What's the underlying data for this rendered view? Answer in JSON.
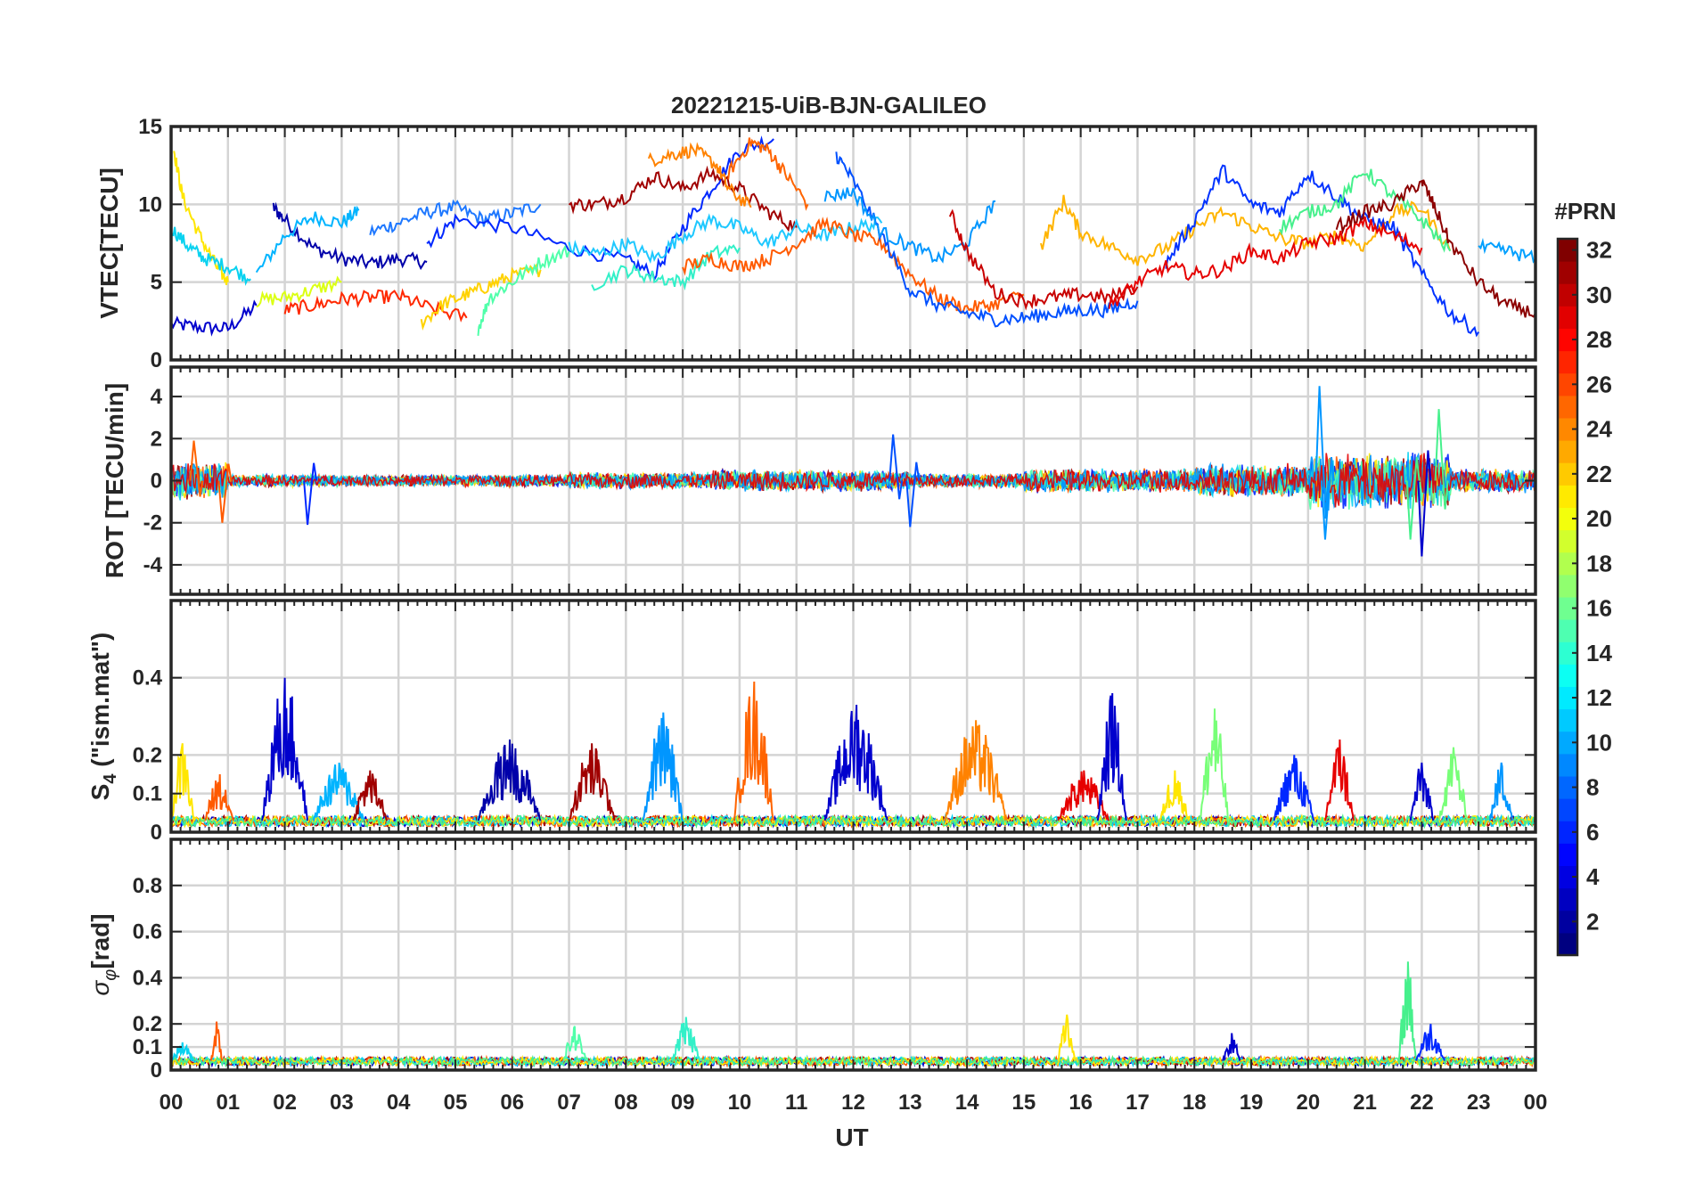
{
  "figure": {
    "title": "20221215-UiB-BJN-GALILEO",
    "xlabel": "UT"
  },
  "colorbar": {
    "label": "#PRN",
    "range": [
      1,
      32
    ],
    "ticks": [
      "2",
      "4",
      "6",
      "8",
      "10",
      "12",
      "14",
      "16",
      "18",
      "20",
      "22",
      "24",
      "26",
      "28",
      "30",
      "32"
    ],
    "colormap": "jet"
  },
  "chart_data": [
    {
      "type": "line",
      "panel": "vtec",
      "ylabel": "VTEC[TECU]",
      "xlim": [
        0,
        24
      ],
      "ylim": [
        0,
        15
      ],
      "ytick_labels": [
        "0",
        "5",
        "10",
        "15"
      ],
      "yticks": [
        0,
        5,
        10,
        15
      ],
      "xtick_labels": [
        "00",
        "01",
        "02",
        "03",
        "04",
        "05",
        "06",
        "07",
        "08",
        "09",
        "10",
        "11",
        "12",
        "13",
        "14",
        "15",
        "16",
        "17",
        "18",
        "19",
        "20",
        "21",
        "22",
        "23",
        "00"
      ],
      "grid": true,
      "series": [
        {
          "prn": 3,
          "color": "#0000cd",
          "x": [
            0.0,
            0.5,
            1.0,
            1.5
          ],
          "y": [
            2.3,
            2.1,
            2.0,
            3.5
          ]
        },
        {
          "prn": 2,
          "color": "#0000aa",
          "x": [
            1.8,
            2.0,
            2.5,
            3.0,
            3.5,
            4.0,
            4.5
          ],
          "y": [
            9.8,
            9.0,
            7.2,
            6.5,
            6.2,
            6.5,
            6.3
          ]
        },
        {
          "prn": 11,
          "color": "#00b4ff",
          "x": [
            1.5,
            2.0,
            2.5,
            3.0,
            3.3
          ],
          "y": [
            5.5,
            8.0,
            9.2,
            8.8,
            9.6
          ]
        },
        {
          "prn": 7,
          "color": "#1e78ff",
          "x": [
            3.5,
            4.0,
            4.5,
            5.0,
            5.5,
            6.0,
            6.5
          ],
          "y": [
            8.2,
            8.8,
            9.5,
            9.8,
            9.0,
            9.4,
            10.0
          ]
        },
        {
          "prn": 4,
          "color": "#0028ff",
          "x": [
            4.5,
            5.0,
            6.0,
            7.0,
            8.0,
            8.5,
            9.0,
            9.5,
            10.0,
            10.6
          ],
          "y": [
            7.5,
            9.0,
            8.5,
            7.2,
            6.4,
            5.5,
            8.5,
            11.0,
            13.5,
            14.2
          ]
        },
        {
          "prn": 20,
          "color": "#ffe600",
          "x": [
            0.05,
            0.2,
            0.5,
            0.8,
            1.0
          ],
          "y": [
            13.5,
            10.5,
            8.0,
            6.0,
            5.0
          ]
        },
        {
          "prn": 12,
          "color": "#0ad2f0",
          "x": [
            0.0,
            0.3,
            0.6,
            1.0,
            1.4
          ],
          "y": [
            8.5,
            7.3,
            6.5,
            6.0,
            5.2
          ]
        },
        {
          "prn": 19,
          "color": "#dcff14",
          "x": [
            1.5,
            2.0,
            2.5,
            3.0
          ],
          "y": [
            3.8,
            4.0,
            4.5,
            5.0
          ]
        },
        {
          "prn": 27,
          "color": "#ff2800",
          "x": [
            2.0,
            2.5,
            3.0,
            3.5,
            4.0,
            4.5,
            5.2
          ],
          "y": [
            3.2,
            3.5,
            3.9,
            4.0,
            4.1,
            3.4,
            2.7
          ]
        },
        {
          "prn": 21,
          "color": "#ffd200",
          "x": [
            4.4,
            4.8,
            5.2,
            5.6,
            6.0,
            6.5
          ],
          "y": [
            2.4,
            3.6,
            4.2,
            4.8,
            5.4,
            5.8
          ]
        },
        {
          "prn": 16,
          "color": "#50ffaa",
          "x": [
            5.4,
            5.6,
            6.0,
            6.5,
            7.0
          ],
          "y": [
            2.0,
            4.0,
            5.0,
            6.3,
            7.0
          ]
        },
        {
          "prn": 31,
          "color": "#a00000",
          "x": [
            7.0,
            7.5,
            8.0,
            8.5,
            9.0,
            9.5,
            10.0,
            10.5,
            11.0
          ],
          "y": [
            10.0,
            10.0,
            10.5,
            11.8,
            11.0,
            12.0,
            11.0,
            9.5,
            8.5
          ]
        },
        {
          "prn": 24,
          "color": "#ff8200",
          "x": [
            8.4,
            8.8,
            9.2,
            9.6,
            9.8,
            10.2
          ],
          "y": [
            12.8,
            13.2,
            13.5,
            12.5,
            11.0,
            9.8
          ]
        },
        {
          "prn": 25,
          "color": "#ff6400",
          "x": [
            9.8,
            10.2,
            10.5,
            10.8,
            11.2
          ],
          "y": [
            12.0,
            14.0,
            13.5,
            12.0,
            10.0
          ]
        },
        {
          "prn": 13,
          "color": "#1ec8ff",
          "x": [
            7.0,
            7.5,
            8.0,
            8.5,
            9.0,
            9.5,
            10.0,
            10.5,
            11.0,
            11.5,
            12.0,
            12.5
          ],
          "y": [
            7.2,
            6.8,
            7.5,
            6.5,
            8.0,
            9.0,
            8.5,
            7.5,
            8.5,
            8.0,
            8.5,
            8.8
          ]
        },
        {
          "prn": 14,
          "color": "#32f0c8",
          "x": [
            7.4,
            8.0,
            8.5,
            9.0,
            9.5,
            10.0
          ],
          "y": [
            4.8,
            5.8,
            5.3,
            5.0,
            6.8,
            7.2
          ]
        },
        {
          "prn": 26,
          "color": "#ff5a00",
          "x": [
            9.0,
            9.5,
            10.0,
            10.5,
            11.0,
            11.5,
            12.0,
            12.5,
            13.0,
            13.5,
            14.0,
            14.5,
            15.0
          ],
          "y": [
            6.0,
            6.5,
            6.0,
            6.5,
            7.5,
            8.8,
            8.0,
            7.5,
            5.5,
            4.0,
            3.3,
            3.6,
            4.2
          ]
        },
        {
          "prn": 5,
          "color": "#0050ff",
          "x": [
            11.7,
            12.0,
            12.5,
            13.0,
            13.5,
            14.0,
            14.5,
            15.0,
            15.5,
            16.0,
            16.5,
            17.0
          ],
          "y": [
            13.2,
            11.5,
            8.0,
            4.5,
            3.5,
            3.0,
            2.6,
            2.7,
            3.0,
            3.2,
            3.2,
            3.8
          ]
        },
        {
          "prn": 9,
          "color": "#0096ff",
          "x": [
            11.5,
            12.0,
            12.5,
            13.0,
            13.5,
            14.0,
            14.5
          ],
          "y": [
            10.5,
            10.8,
            8.2,
            7.3,
            6.5,
            7.5,
            10.2
          ]
        },
        {
          "prn": 29,
          "color": "#c80000",
          "x": [
            13.7,
            14.0,
            14.5,
            15.0,
            15.5,
            16.0,
            16.5,
            17.0
          ],
          "y": [
            9.5,
            7.0,
            4.3,
            3.8,
            4.0,
            4.2,
            4.0,
            4.7
          ]
        },
        {
          "prn": 22,
          "color": "#ffb400",
          "x": [
            15.3,
            15.7,
            16.0,
            16.5,
            17.0,
            17.5,
            18.0,
            18.5,
            19.0,
            19.5,
            20.0,
            20.5,
            21.0,
            21.5,
            22.0,
            22.5
          ],
          "y": [
            7.3,
            10.2,
            8.2,
            7.3,
            6.5,
            7.2,
            8.5,
            9.5,
            8.6,
            7.8,
            7.5,
            8.0,
            7.3,
            9.5,
            9.8,
            7.0
          ]
        },
        {
          "prn": 6,
          "color": "#0032ff",
          "x": [
            17.5,
            18.0,
            18.5,
            19.0,
            19.5,
            20.0,
            20.5,
            21.0,
            21.5,
            22.0,
            22.5,
            23.0
          ],
          "y": [
            6.2,
            9.0,
            12.2,
            10.0,
            9.5,
            12.0,
            10.5,
            9.0,
            8.5,
            5.5,
            3.0,
            1.8
          ]
        },
        {
          "prn": 28,
          "color": "#e60000",
          "x": [
            16.5,
            17.0,
            17.5,
            18.0,
            18.5,
            19.0,
            19.5,
            20.0,
            20.5,
            21.0,
            21.5,
            22.0
          ],
          "y": [
            3.5,
            5.0,
            6.0,
            5.5,
            5.8,
            7.0,
            6.5,
            7.5,
            7.8,
            8.8,
            8.0,
            7.2
          ]
        },
        {
          "prn": 15,
          "color": "#46f08c",
          "x": [
            19.5,
            20.0,
            20.5,
            21.0,
            21.5,
            22.0,
            22.5
          ],
          "y": [
            8.5,
            9.5,
            10.0,
            12.2,
            10.5,
            9.0,
            7.0
          ]
        },
        {
          "prn": 32,
          "color": "#8c0000",
          "x": [
            20.5,
            21.0,
            21.5,
            22.0,
            22.2,
            22.5,
            23.0,
            23.5,
            24.0
          ],
          "y": [
            8.5,
            9.5,
            10.0,
            11.5,
            10.0,
            7.5,
            5.0,
            3.5,
            3.0
          ]
        },
        {
          "prn": 10,
          "color": "#00a0ff",
          "x": [
            23.0,
            23.5,
            24.0
          ],
          "y": [
            7.2,
            7.0,
            6.5
          ]
        }
      ]
    },
    {
      "type": "line",
      "panel": "rot",
      "ylabel": "ROT [TECU/min]",
      "xlim": [
        0,
        24
      ],
      "ylim": [
        -5.4,
        5.4
      ],
      "ytick_labels": [
        "-4",
        "-2",
        "0",
        "2",
        "4"
      ],
      "yticks": [
        -4,
        -2,
        0,
        2,
        4
      ],
      "grid": true,
      "noise_bands": [
        {
          "x": [
            0.0,
            1.0
          ],
          "amplitude": 0.8
        },
        {
          "x": [
            1.0,
            7.0
          ],
          "amplitude": 0.25
        },
        {
          "x": [
            7.0,
            9.5
          ],
          "amplitude": 0.35
        },
        {
          "x": [
            9.5,
            13.0
          ],
          "amplitude": 0.45
        },
        {
          "x": [
            13.0,
            15.0
          ],
          "amplitude": 0.3
        },
        {
          "x": [
            15.0,
            18.0
          ],
          "amplitude": 0.5
        },
        {
          "x": [
            18.0,
            20.0
          ],
          "amplitude": 0.7
        },
        {
          "x": [
            20.0,
            22.5
          ],
          "amplitude": 1.2
        },
        {
          "x": [
            22.5,
            24.0
          ],
          "amplitude": 0.5
        }
      ],
      "peaks": [
        {
          "x": 0.4,
          "y": 1.9,
          "color": "#ff6400"
        },
        {
          "x": 0.9,
          "y": -2.0,
          "color": "#ff5a00"
        },
        {
          "x": 2.4,
          "y": -2.1,
          "color": "#0028ff"
        },
        {
          "x": 12.7,
          "y": 2.2,
          "color": "#0050ff"
        },
        {
          "x": 13.0,
          "y": -2.2,
          "color": "#0050ff"
        },
        {
          "x": 20.2,
          "y": 4.5,
          "color": "#0096ff"
        },
        {
          "x": 20.3,
          "y": -2.8,
          "color": "#0096ff"
        },
        {
          "x": 22.0,
          "y": -3.6,
          "color": "#0000cd"
        },
        {
          "x": 22.3,
          "y": 3.4,
          "color": "#46f08c"
        },
        {
          "x": 21.8,
          "y": -2.8,
          "color": "#46f08c"
        }
      ]
    },
    {
      "type": "line",
      "panel": "s4",
      "ylabel": "S4 (\"ism.mat\")",
      "xlim": [
        0,
        24
      ],
      "ylim": [
        0,
        0.6
      ],
      "ytick_labels": [
        "0",
        "0.1",
        "0.2",
        "0.4"
      ],
      "yticks": [
        0,
        0.1,
        0.2,
        0.4
      ],
      "grid": true,
      "baseline": 0.03,
      "bursts": [
        {
          "x0": 0.0,
          "x1": 0.4,
          "peak": 0.23,
          "color": "#ffe600"
        },
        {
          "x0": 0.6,
          "x1": 1.1,
          "peak": 0.15,
          "color": "#ff5a00"
        },
        {
          "x0": 1.6,
          "x1": 2.4,
          "peak": 0.4,
          "color": "#0000cd"
        },
        {
          "x0": 2.5,
          "x1": 3.4,
          "peak": 0.18,
          "color": "#00b4ff"
        },
        {
          "x0": 3.2,
          "x1": 3.8,
          "peak": 0.16,
          "color": "#a00000"
        },
        {
          "x0": 5.4,
          "x1": 6.5,
          "peak": 0.24,
          "color": "#0000aa"
        },
        {
          "x0": 7.0,
          "x1": 7.8,
          "peak": 0.23,
          "color": "#a00000"
        },
        {
          "x0": 8.3,
          "x1": 9.0,
          "peak": 0.31,
          "color": "#0096ff"
        },
        {
          "x0": 9.9,
          "x1": 10.6,
          "peak": 0.39,
          "color": "#ff6400"
        },
        {
          "x0": 11.5,
          "x1": 12.6,
          "peak": 0.33,
          "color": "#0000cd"
        },
        {
          "x0": 13.6,
          "x1": 14.7,
          "peak": 0.29,
          "color": "#ff8200"
        },
        {
          "x0": 15.6,
          "x1": 16.5,
          "peak": 0.16,
          "color": "#e60000"
        },
        {
          "x0": 16.3,
          "x1": 16.8,
          "peak": 0.36,
          "color": "#0000cd"
        },
        {
          "x0": 17.4,
          "x1": 17.9,
          "peak": 0.16,
          "color": "#ffe600"
        },
        {
          "x0": 18.1,
          "x1": 18.6,
          "peak": 0.32,
          "color": "#78ff78"
        },
        {
          "x0": 19.4,
          "x1": 20.1,
          "peak": 0.2,
          "color": "#0028ff"
        },
        {
          "x0": 20.3,
          "x1": 20.8,
          "peak": 0.24,
          "color": "#e60000"
        },
        {
          "x0": 21.8,
          "x1": 22.2,
          "peak": 0.18,
          "color": "#0000cd"
        },
        {
          "x0": 22.3,
          "x1": 22.8,
          "peak": 0.22,
          "color": "#78ff78"
        },
        {
          "x0": 23.2,
          "x1": 23.6,
          "peak": 0.18,
          "color": "#0096ff"
        }
      ]
    },
    {
      "type": "line",
      "panel": "sigma_phi",
      "ylabel": "σφ[rad]",
      "xlim": [
        0,
        24
      ],
      "ylim": [
        0,
        1.0
      ],
      "ytick_labels": [
        "0",
        "0.1",
        "0.2",
        "0.4",
        "0.6",
        "0.8"
      ],
      "yticks": [
        0,
        0.1,
        0.2,
        0.4,
        0.6,
        0.8
      ],
      "grid": true,
      "baseline": 0.04,
      "bursts": [
        {
          "x0": 0.0,
          "x1": 0.4,
          "peak": 0.12,
          "color": "#0ad2f0"
        },
        {
          "x0": 0.7,
          "x1": 0.9,
          "peak": 0.21,
          "color": "#ff5a00"
        },
        {
          "x0": 6.9,
          "x1": 7.3,
          "peak": 0.19,
          "color": "#50ffaa"
        },
        {
          "x0": 8.8,
          "x1": 9.3,
          "peak": 0.23,
          "color": "#32f0c8"
        },
        {
          "x0": 15.6,
          "x1": 15.9,
          "peak": 0.24,
          "color": "#ffe600"
        },
        {
          "x0": 18.5,
          "x1": 18.8,
          "peak": 0.16,
          "color": "#0000cd"
        },
        {
          "x0": 21.6,
          "x1": 21.9,
          "peak": 0.47,
          "color": "#46f08c"
        },
        {
          "x0": 21.9,
          "x1": 22.4,
          "peak": 0.2,
          "color": "#0028ff"
        }
      ]
    }
  ]
}
